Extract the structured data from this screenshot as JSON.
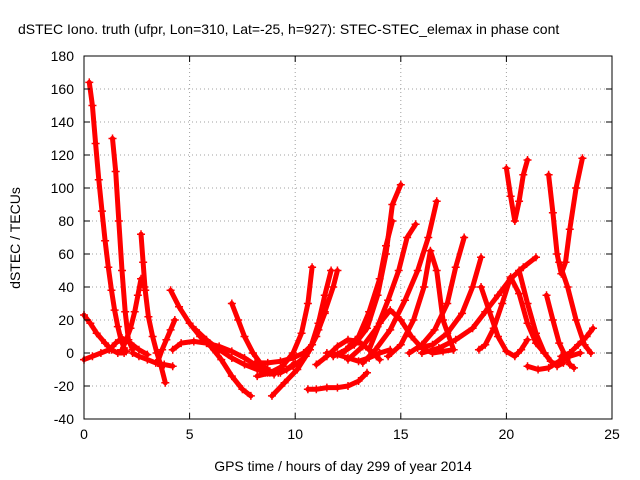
{
  "chart_data": {
    "type": "scatter",
    "title": "dSTEC Iono. truth (ufpr, Lon=310, Lat=-25, h=927): STEC-STEC_elemax in phase cont",
    "xlabel": "GPS time / hours of day 299 of year 2014",
    "ylabel": "dSTEC  / TECUs",
    "xlim": [
      0,
      25
    ],
    "ylim": [
      -40,
      180
    ],
    "xticks": [
      0,
      5,
      10,
      15,
      20,
      25
    ],
    "yticks": [
      -40,
      -20,
      0,
      20,
      40,
      60,
      80,
      100,
      120,
      140,
      160,
      180
    ],
    "xtick_labels": [
      "0",
      "5",
      "10",
      "15",
      "20",
      "25"
    ],
    "ytick_labels": [
      "-40",
      "-20",
      "0",
      "20",
      "40",
      "60",
      "80",
      "100",
      "120",
      "140",
      "160",
      "180"
    ],
    "grid": true,
    "grid_style": "dotted",
    "marker": "plus",
    "color": "#ff0000",
    "series": [
      {
        "x": [
          0.0,
          0.3,
          0.6,
          1.0,
          1.3,
          1.6,
          1.9
        ],
        "y": [
          23,
          18,
          12,
          6,
          2,
          0,
          0
        ]
      },
      {
        "x": [
          0.0,
          0.4,
          0.8,
          1.2,
          1.5,
          1.8,
          2.2,
          2.6,
          3.0
        ],
        "y": [
          -4,
          -2,
          0,
          2,
          6,
          9,
          6,
          2,
          -1
        ]
      },
      {
        "x": [
          0.25,
          0.4,
          0.55,
          0.7,
          0.85,
          1.0,
          1.15,
          1.3,
          1.45,
          1.6,
          1.75,
          1.9,
          2.0
        ],
        "y": [
          164,
          150,
          127,
          105,
          86,
          68,
          52,
          38,
          26,
          16,
          8,
          3,
          1
        ]
      },
      {
        "x": [
          1.35,
          1.5,
          1.65,
          1.8,
          1.95,
          2.1,
          2.3
        ],
        "y": [
          130,
          110,
          80,
          50,
          25,
          8,
          2
        ]
      },
      {
        "x": [
          2.7,
          2.8,
          2.9,
          3.05,
          3.25,
          3.45,
          3.65,
          3.85
        ],
        "y": [
          72,
          55,
          38,
          22,
          10,
          0,
          -8,
          -18
        ]
      },
      {
        "x": [
          1.8,
          2.0,
          2.2,
          2.4,
          2.55,
          2.7,
          2.85
        ],
        "y": [
          2,
          8,
          15,
          25,
          35,
          45,
          40
        ]
      },
      {
        "x": [
          2.3,
          2.6,
          3.0,
          3.4,
          3.8,
          4.2
        ],
        "y": [
          0,
          -2,
          -4,
          -6,
          -7,
          -8
        ]
      },
      {
        "x": [
          3.5,
          3.7,
          3.9,
          4.1,
          4.3
        ],
        "y": [
          -5,
          2,
          8,
          14,
          20
        ]
      },
      {
        "x": [
          4.1,
          4.5,
          5.0,
          5.5,
          6.0,
          6.5,
          7.0,
          7.5,
          7.9
        ],
        "y": [
          38,
          28,
          18,
          10,
          4,
          -4,
          -14,
          -22,
          -26
        ]
      },
      {
        "x": [
          4.2,
          4.6,
          5.2,
          5.8,
          6.4,
          7.0,
          7.6,
          8.2,
          8.7
        ],
        "y": [
          2,
          6,
          7,
          6,
          4,
          1,
          -3,
          -8,
          -12
        ]
      },
      {
        "x": [
          5.3,
          5.8,
          6.4,
          7.0,
          7.6,
          8.2,
          8.6,
          9.0
        ],
        "y": [
          14,
          8,
          2,
          -3,
          -7,
          -10,
          -12,
          -13
        ]
      },
      {
        "x": [
          7.0,
          7.3,
          7.6,
          8.0,
          8.4,
          8.8,
          9.2,
          9.6,
          10.0
        ],
        "y": [
          30,
          20,
          10,
          0,
          -7,
          -11,
          -12,
          -10,
          -6
        ]
      },
      {
        "x": [
          8.1,
          8.7,
          9.3,
          9.9,
          10.4,
          10.8,
          11.1,
          11.4
        ],
        "y": [
          -6,
          -6,
          -5,
          -3,
          0,
          5,
          14,
          24
        ]
      },
      {
        "x": [
          8.2,
          8.8,
          9.4,
          9.9,
          10.3,
          10.6,
          10.8
        ],
        "y": [
          -14,
          -12,
          -8,
          0,
          12,
          30,
          52
        ]
      },
      {
        "x": [
          8.9,
          9.5,
          10.1,
          10.7,
          11.1,
          11.4,
          11.7
        ],
        "y": [
          -26,
          -18,
          -10,
          2,
          18,
          35,
          50
        ]
      },
      {
        "x": [
          9.3,
          9.9,
          10.5,
          11.0,
          11.4,
          11.8,
          12.0
        ],
        "y": [
          -12,
          -8,
          -2,
          10,
          25,
          40,
          50
        ]
      },
      {
        "x": [
          10.6,
          11.0,
          11.5,
          12.0,
          12.5,
          13.0,
          13.4
        ],
        "y": [
          -22,
          -22,
          -21,
          -21,
          -20,
          -17,
          -12
        ]
      },
      {
        "x": [
          11.0,
          11.5,
          12.0,
          12.5,
          13.0,
          13.5,
          14.0
        ],
        "y": [
          -7,
          -2,
          4,
          8,
          7,
          2,
          -4
        ]
      },
      {
        "x": [
          11.5,
          12.0,
          12.5,
          13.0,
          13.5,
          14.0,
          14.5
        ],
        "y": [
          0,
          -1,
          -3,
          -5,
          -3,
          0,
          2
        ]
      },
      {
        "x": [
          11.8,
          12.4,
          13.0,
          13.5,
          14.0,
          14.3,
          14.6
        ],
        "y": [
          -2,
          2,
          10,
          25,
          45,
          65,
          80
        ]
      },
      {
        "x": [
          12.2,
          12.8,
          13.4,
          13.9,
          14.3,
          14.6,
          15.0
        ],
        "y": [
          0,
          5,
          15,
          35,
          60,
          90,
          102
        ]
      },
      {
        "x": [
          12.5,
          13.2,
          13.9,
          14.4,
          14.9,
          15.3,
          15.7
        ],
        "y": [
          -4,
          4,
          16,
          32,
          50,
          70,
          78
        ]
      },
      {
        "x": [
          13.2,
          13.8,
          14.5,
          15.2,
          15.8,
          16.3,
          16.7
        ],
        "y": [
          -6,
          2,
          14,
          32,
          50,
          70,
          92
        ]
      },
      {
        "x": [
          13.5,
          14.0,
          14.5,
          15.0,
          15.5,
          16.0,
          16.5,
          17.0,
          17.5
        ],
        "y": [
          2,
          18,
          26,
          20,
          10,
          3,
          0,
          1,
          2
        ]
      },
      {
        "x": [
          14.4,
          15.0,
          15.6,
          16.1,
          16.4,
          16.7,
          17.0,
          17.5
        ],
        "y": [
          -2,
          5,
          20,
          40,
          62,
          50,
          20,
          2
        ]
      },
      {
        "x": [
          15.4,
          16.0,
          16.6,
          17.2,
          17.6,
          18.0
        ],
        "y": [
          0,
          5,
          14,
          30,
          52,
          70
        ]
      },
      {
        "x": [
          15.8,
          16.5,
          17.2,
          17.9,
          18.4,
          18.8
        ],
        "y": [
          3,
          5,
          12,
          24,
          40,
          58
        ]
      },
      {
        "x": [
          16.0,
          16.8,
          17.6,
          18.4,
          19.0,
          19.6,
          20.2,
          20.8,
          21.4
        ],
        "y": [
          0,
          3,
          8,
          15,
          25,
          35,
          45,
          52,
          58
        ]
      },
      {
        "x": [
          18.8,
          19.2,
          19.6,
          20.0,
          20.4,
          20.7,
          21.0
        ],
        "y": [
          40,
          25,
          10,
          1,
          -2,
          2,
          8
        ]
      },
      {
        "x": [
          18.7,
          19.0,
          19.4,
          19.8,
          20.2,
          20.6,
          21.0,
          21.4,
          21.8
        ],
        "y": [
          2,
          5,
          15,
          30,
          46,
          36,
          18,
          6,
          0
        ]
      },
      {
        "x": [
          20.0,
          20.2,
          20.4,
          20.6,
          20.8,
          21.0
        ],
        "y": [
          112,
          95,
          80,
          92,
          108,
          117
        ]
      },
      {
        "x": [
          20.6,
          21.0,
          21.4,
          21.8,
          22.1,
          22.4,
          22.7
        ],
        "y": [
          50,
          30,
          12,
          0,
          -5,
          -8,
          -6
        ]
      },
      {
        "x": [
          21.9,
          22.2,
          22.5,
          22.8,
          23.0,
          23.2
        ],
        "y": [
          35,
          20,
          6,
          -2,
          -7,
          -9
        ]
      },
      {
        "x": [
          22.0,
          22.2,
          22.4,
          22.6,
          22.8,
          23.0,
          23.3,
          23.6
        ],
        "y": [
          108,
          85,
          60,
          48,
          55,
          75,
          100,
          118
        ]
      },
      {
        "x": [
          22.5,
          22.9,
          23.3,
          23.7,
          24.0
        ],
        "y": [
          55,
          40,
          20,
          5,
          0
        ]
      },
      {
        "x": [
          22.6,
          23.0,
          23.4,
          23.8,
          24.1
        ],
        "y": [
          -2,
          0,
          5,
          10,
          15
        ]
      },
      {
        "x": [
          21.0,
          21.5,
          22.0,
          22.5,
          23.0,
          23.5
        ],
        "y": [
          -8,
          -10,
          -9,
          -5,
          -2,
          0
        ]
      }
    ]
  }
}
